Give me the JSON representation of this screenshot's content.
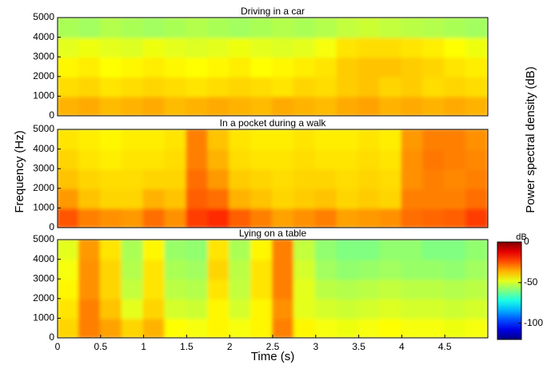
{
  "chart_data": [
    {
      "type": "heatmap",
      "title": "Driving in a car",
      "colormap": "jet",
      "xlim": [
        0,
        5
      ],
      "ylim": [
        0,
        5000
      ],
      "yticks": [
        0,
        1000,
        2000,
        3000,
        4000,
        5000
      ],
      "values": [
        [
          -36,
          -35,
          -37,
          -36,
          -35,
          -37,
          -36,
          -35,
          -36,
          -37,
          -35,
          -36,
          -37,
          -35,
          -34,
          -36,
          -35,
          -36,
          -35,
          -36
        ],
        [
          -41,
          -40,
          -42,
          -41,
          -40,
          -41,
          -42,
          -41,
          -40,
          -41,
          -42,
          -40,
          -41,
          -39,
          -38,
          -40,
          -39,
          -41,
          -40,
          -41
        ],
        [
          -44,
          -43,
          -45,
          -44,
          -43,
          -44,
          -45,
          -44,
          -43,
          -45,
          -44,
          -43,
          -42,
          -39,
          -38,
          -38,
          -39,
          -40,
          -42,
          -43
        ],
        [
          -48,
          -47,
          -48,
          -49,
          -47,
          -48,
          -49,
          -48,
          -47,
          -48,
          -49,
          -48,
          -46,
          -42,
          -41,
          -41,
          -42,
          -43,
          -45,
          -47
        ],
        [
          -55,
          -56,
          -54,
          -55,
          -56,
          -55,
          -54,
          -55,
          -56,
          -55,
          -54,
          -55,
          -54,
          -52,
          -51,
          -52,
          -53,
          -54,
          -55,
          -56
        ]
      ]
    },
    {
      "type": "heatmap",
      "title": "In a pocket during a walk",
      "colormap": "jet",
      "ylabel": "Frequency (Hz)",
      "xlim": [
        0,
        5
      ],
      "ylim": [
        0,
        5000
      ],
      "yticks": [
        0,
        1000,
        2000,
        3000,
        4000,
        5000
      ],
      "values": [
        [
          -25,
          -30,
          -32,
          -33,
          -28,
          -32,
          -22,
          -20,
          -26,
          -30,
          -34,
          -32,
          -30,
          -34,
          -33,
          -32,
          -28,
          -27,
          -26,
          -22
        ],
        [
          -33,
          -38,
          -40,
          -40,
          -36,
          -38,
          -26,
          -28,
          -36,
          -38,
          -40,
          -39,
          -38,
          -40,
          -39,
          -40,
          -30,
          -30,
          -30,
          -28
        ],
        [
          -38,
          -40,
          -41,
          -41,
          -40,
          -40,
          -28,
          -33,
          -39,
          -40,
          -41,
          -40,
          -40,
          -41,
          -40,
          -41,
          -32,
          -30,
          -31,
          -30
        ],
        [
          -40,
          -42,
          -43,
          -42,
          -42,
          -41,
          -30,
          -36,
          -41,
          -42,
          -42,
          -41,
          -42,
          -42,
          -41,
          -42,
          -32,
          -29,
          -30,
          -31
        ],
        [
          -42,
          -43,
          -44,
          -43,
          -43,
          -42,
          -30,
          -38,
          -42,
          -43,
          -43,
          -42,
          -43,
          -43,
          -42,
          -43,
          -33,
          -30,
          -30,
          -32
        ]
      ]
    },
    {
      "type": "heatmap",
      "title": "Lying on a table",
      "colormap": "jet",
      "xlabel": "Time (s)",
      "xlim": [
        0,
        5
      ],
      "ylim": [
        0,
        5000
      ],
      "xticks": [
        0,
        0.5,
        1,
        1.5,
        2,
        2.5,
        3,
        3.5,
        4,
        4.5
      ],
      "yticks": [
        0,
        1000,
        2000,
        3000,
        4000,
        5000
      ],
      "colorbar": {
        "label": "Power spectral density (dB)",
        "unit": "dB",
        "lim": [
          -120,
          0
        ],
        "ticks": [
          0,
          -50,
          -100
        ]
      },
      "values": [
        [
          -40,
          -30,
          -34,
          -40,
          -36,
          -45,
          -46,
          -44,
          -46,
          -44,
          -30,
          -44,
          -46,
          -47,
          -46,
          -45,
          -46,
          -46,
          -47,
          -46
        ],
        [
          -42,
          -30,
          -38,
          -48,
          -40,
          -50,
          -51,
          -44,
          -50,
          -44,
          -32,
          -48,
          -50,
          -51,
          -50,
          -49,
          -50,
          -50,
          -51,
          -50
        ],
        [
          -44,
          -32,
          -40,
          -52,
          -42,
          -53,
          -54,
          -42,
          -52,
          -42,
          -30,
          -48,
          -53,
          -54,
          -53,
          -52,
          -53,
          -53,
          -54,
          -53
        ],
        [
          -46,
          -32,
          -40,
          -54,
          -42,
          -55,
          -56,
          -40,
          -53,
          -42,
          -30,
          -50,
          -56,
          -58,
          -57,
          -56,
          -57,
          -57,
          -58,
          -56
        ],
        [
          -48,
          -33,
          -42,
          -55,
          -44,
          -57,
          -58,
          -42,
          -55,
          -44,
          -30,
          -52,
          -58,
          -60,
          -60,
          -58,
          -58,
          -60,
          -60,
          -58
        ]
      ]
    }
  ]
}
